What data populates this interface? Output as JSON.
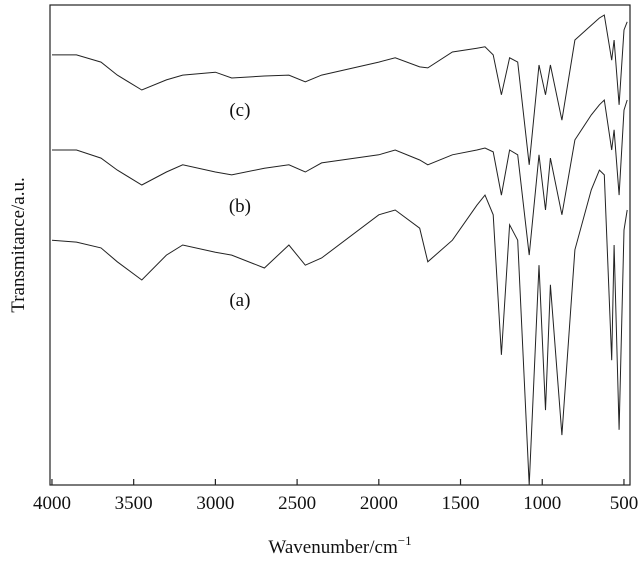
{
  "chart_data": {
    "type": "line",
    "x_label": "Wavenumber/cm",
    "x_label_superscript": "−1",
    "y_label": "Transmitance/a.u.",
    "x": [
      4000,
      3850,
      3700,
      3600,
      3450,
      3300,
      3200,
      3000,
      2900,
      2700,
      2550,
      2450,
      2350,
      2000,
      1900,
      1750,
      1700,
      1550,
      1400,
      1350,
      1300,
      1250,
      1200,
      1150,
      1080,
      1020,
      980,
      950,
      880,
      800,
      700,
      650,
      620,
      575,
      560,
      530,
      500,
      480
    ],
    "series": [
      {
        "name": "(c)",
        "color": "#222222",
        "values": [
          89.6,
          89.6,
          88.1,
          85.4,
          82.3,
          84.4,
          85.4,
          86.0,
          84.8,
          85.2,
          85.4,
          84.0,
          85.4,
          88.1,
          89.0,
          87.1,
          86.9,
          90.2,
          91.0,
          91.3,
          89.6,
          81.3,
          89.0,
          88.1,
          66.7,
          87.5,
          81.3,
          87.5,
          76.0,
          92.7,
          95.8,
          97.3,
          97.9,
          88.5,
          92.7,
          79.2,
          94.8,
          96.5
        ]
      },
      {
        "name": "(b)",
        "color": "#222222",
        "values": [
          69.8,
          69.8,
          68.1,
          65.6,
          62.5,
          65.2,
          66.7,
          65.2,
          64.6,
          66.0,
          66.7,
          65.2,
          67.1,
          68.8,
          69.8,
          67.7,
          66.7,
          68.8,
          69.8,
          70.2,
          69.4,
          60.4,
          69.8,
          68.8,
          47.9,
          68.8,
          57.3,
          68.1,
          56.3,
          71.9,
          77.1,
          79.2,
          80.2,
          69.8,
          74.0,
          60.4,
          78.1,
          80.2
        ]
      },
      {
        "name": "(a)",
        "color": "#222222",
        "values": [
          51.0,
          50.6,
          49.4,
          46.5,
          42.7,
          47.9,
          50.0,
          48.5,
          47.9,
          45.2,
          50.0,
          45.8,
          47.3,
          56.3,
          57.3,
          53.5,
          46.5,
          51.0,
          58.3,
          60.4,
          56.3,
          27.1,
          54.2,
          51.0,
          0,
          45.8,
          15.6,
          41.7,
          10.4,
          49.0,
          61.5,
          65.6,
          64.6,
          26.0,
          50.0,
          11.5,
          53.1,
          57.3
        ]
      }
    ],
    "xlim": [
      4012,
      463
    ],
    "xticks": [
      4000,
      3500,
      3000,
      2500,
      2000,
      1500,
      1000,
      500
    ],
    "ylim": [
      0,
      100
    ]
  }
}
